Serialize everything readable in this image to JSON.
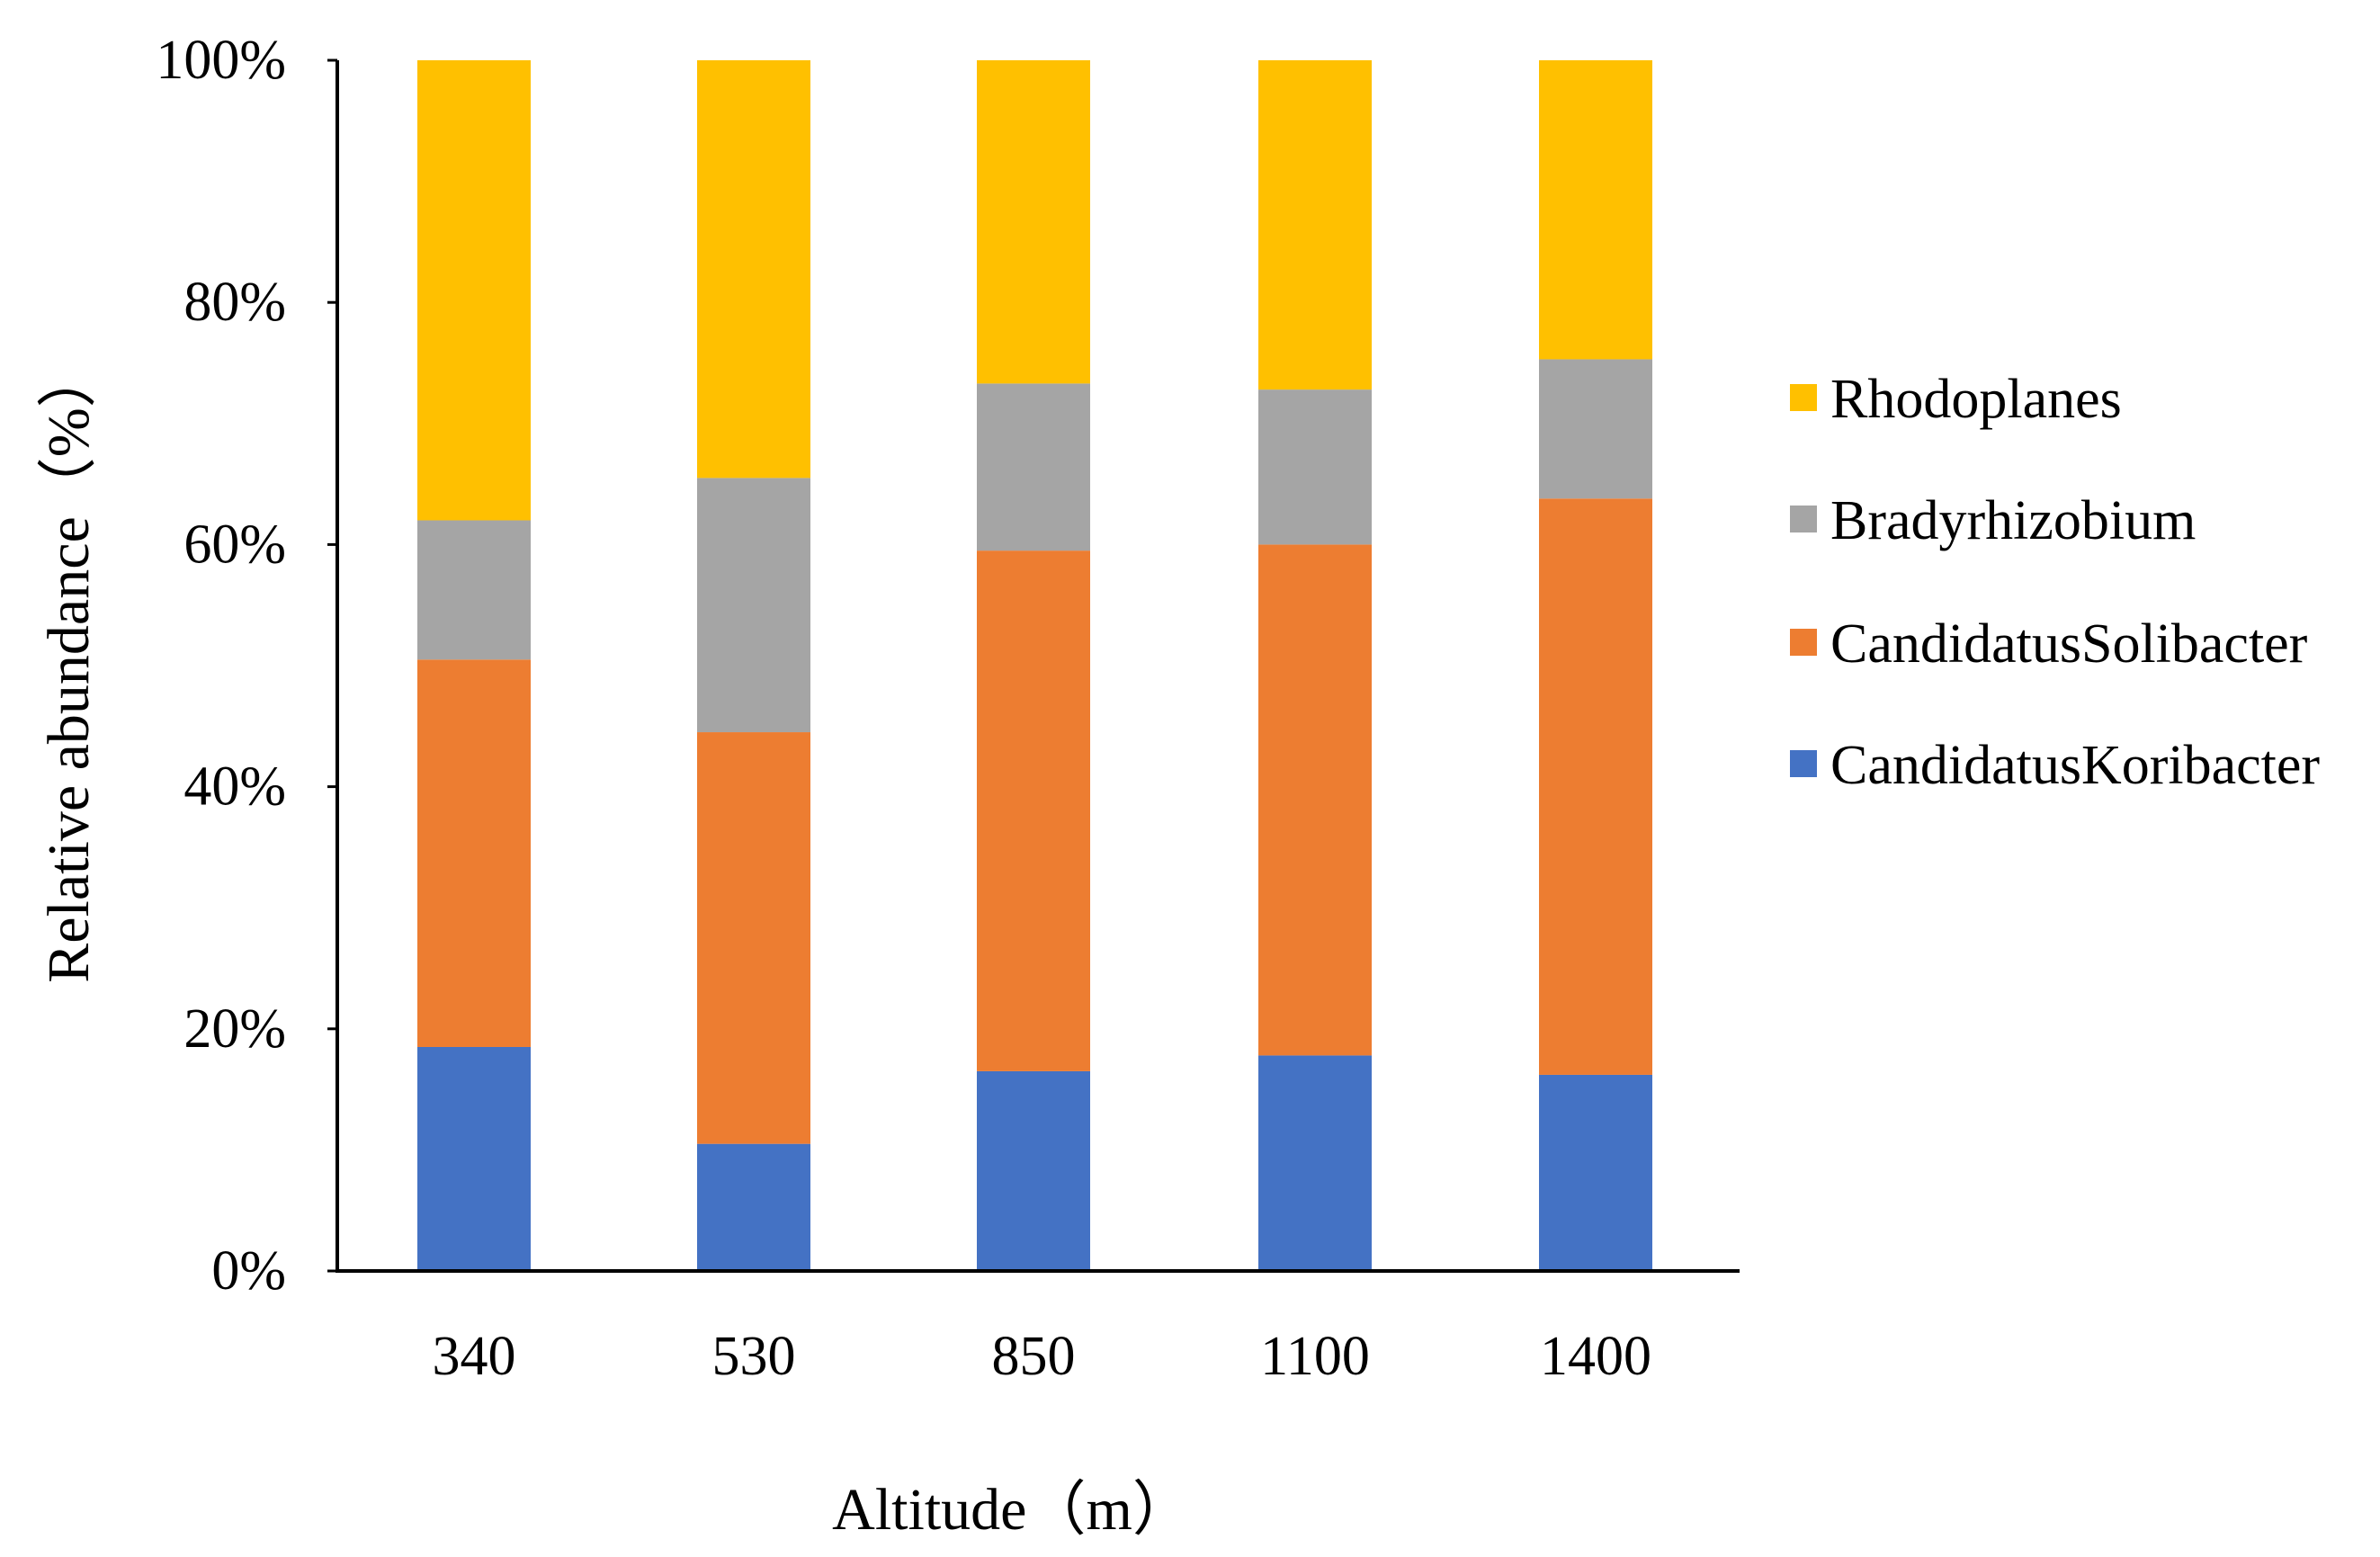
{
  "chart_data": {
    "type": "bar",
    "stacked": true,
    "categories": [
      "340",
      "530",
      "850",
      "1100",
      "1400"
    ],
    "series": [
      {
        "name": "CandidatusKoribacter",
        "color": "#4472C4",
        "values": [
          18.5,
          10.5,
          16.5,
          17.8,
          16.2
        ]
      },
      {
        "name": "CandidatusSolibacter",
        "color": "#ED7D31",
        "values": [
          32.0,
          34.0,
          43.0,
          42.2,
          47.6
        ]
      },
      {
        "name": "Bradyrhizobium",
        "color": "#A5A5A5",
        "values": [
          11.5,
          21.0,
          13.8,
          12.8,
          11.5
        ]
      },
      {
        "name": "Rhodoplanes",
        "color": "#FFC000",
        "values": [
          38.0,
          34.5,
          26.7,
          27.2,
          24.7
        ]
      }
    ],
    "yticks": [
      "0%",
      "20%",
      "40%",
      "60%",
      "80%",
      "100%"
    ],
    "ylim": [
      0,
      100
    ],
    "xlabel": "Altitude（m）",
    "ylabel": "Relative abundance（%）",
    "title": "",
    "grid": false,
    "legend_position": "right",
    "legend_order": [
      "Rhodoplanes",
      "Bradyrhizobium",
      "CandidatusSolibacter",
      "CandidatusKoribacter"
    ]
  }
}
